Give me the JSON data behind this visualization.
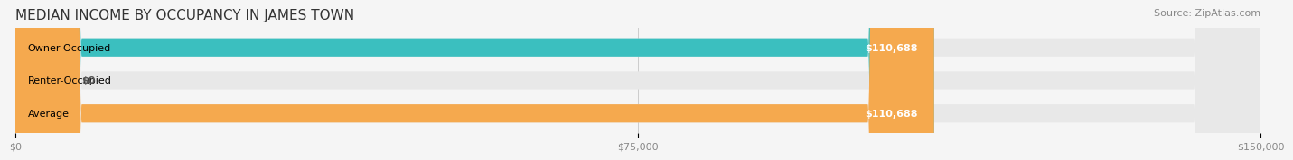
{
  "title": "MEDIAN INCOME BY OCCUPANCY IN JAMES TOWN",
  "source": "Source: ZipAtlas.com",
  "categories": [
    "Owner-Occupied",
    "Renter-Occupied",
    "Average"
  ],
  "values": [
    110688,
    0,
    110688
  ],
  "bar_colors": [
    "#3bbfbf",
    "#b8a9c9",
    "#f5a94e"
  ],
  "bar_bg_color": "#e8e8e8",
  "label_values": [
    "$110,688",
    "$0",
    "$110,688"
  ],
  "xlim": [
    0,
    150000
  ],
  "xticks": [
    0,
    75000,
    150000
  ],
  "xtick_labels": [
    "$0",
    "$75,000",
    "$150,000"
  ],
  "title_fontsize": 11,
  "source_fontsize": 8,
  "label_fontsize": 8,
  "cat_fontsize": 8,
  "tick_fontsize": 8,
  "bg_color": "#f5f5f5",
  "bar_height": 0.55,
  "bar_bg_alpha": 1.0
}
